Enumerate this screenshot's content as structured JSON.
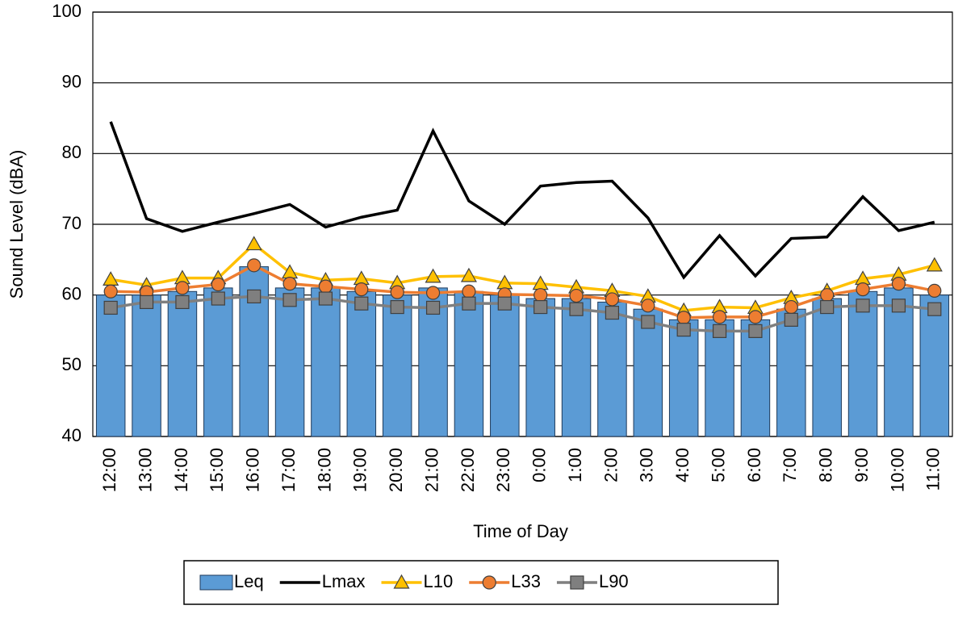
{
  "chart_data": {
    "type": "bar-line",
    "x_label": "Time of Day",
    "y_label": "Sound Level (dBA)",
    "categories": [
      "12:00",
      "13:00",
      "14:00",
      "15:00",
      "16:00",
      "17:00",
      "18:00",
      "19:00",
      "20:00",
      "21:00",
      "22:00",
      "23:00",
      "0:00",
      "1:00",
      "2:00",
      "3:00",
      "4:00",
      "5:00",
      "6:00",
      "7:00",
      "8:00",
      "9:00",
      "10:00",
      "11:00"
    ],
    "ylim": [
      40,
      100
    ],
    "yticks": [
      40,
      50,
      60,
      70,
      80,
      90,
      100
    ],
    "grid": true,
    "legend": "bottom",
    "series": [
      {
        "name": "Leq",
        "kind": "bar",
        "color": "#5b9bd5",
        "values": [
          60,
          60,
          60.5,
          61,
          64,
          61,
          61,
          60.5,
          60,
          61,
          60.5,
          60,
          59.5,
          59.5,
          59,
          58,
          56.5,
          56.5,
          56.5,
          58,
          59.5,
          60.5,
          61,
          60
        ]
      },
      {
        "name": "Lmax",
        "kind": "line",
        "color": "#000000",
        "values": [
          84.5,
          70.8,
          69,
          70.3,
          71.5,
          72.8,
          69.6,
          71,
          72,
          83.2,
          73.3,
          70,
          75.4,
          75.9,
          76.1,
          70.9,
          62.5,
          68.4,
          62.7,
          68,
          68.2,
          73.9,
          69.1,
          70.3
        ]
      },
      {
        "name": "L10",
        "kind": "line",
        "marker": "triangle",
        "color": "#ffc000",
        "values": [
          62.2,
          61.4,
          62.4,
          62.4,
          67.2,
          63.2,
          62.1,
          62.3,
          61.7,
          62.6,
          62.7,
          61.7,
          61.6,
          61.1,
          60.6,
          59.8,
          57.8,
          58.3,
          58.2,
          59.6,
          60.6,
          62.3,
          62.9,
          64.2
        ]
      },
      {
        "name": "L33",
        "kind": "line",
        "marker": "circle",
        "color": "#ed7d31",
        "values": [
          60.5,
          60.4,
          61,
          61.5,
          64.2,
          61.6,
          61.2,
          60.8,
          60.4,
          60.3,
          60.5,
          60.1,
          60,
          59.9,
          59.4,
          58.5,
          56.8,
          56.9,
          56.9,
          58.3,
          60,
          60.8,
          61.6,
          60.6
        ]
      },
      {
        "name": "L90",
        "kind": "line",
        "marker": "square",
        "color": "#7f7f7f",
        "values": [
          58.2,
          59,
          59,
          59.5,
          59.8,
          59.3,
          59.5,
          58.8,
          58.3,
          58.2,
          58.8,
          58.8,
          58.3,
          58,
          57.5,
          56.2,
          55.1,
          54.9,
          54.9,
          56.5,
          58.3,
          58.5,
          58.5,
          58
        ]
      }
    ]
  }
}
